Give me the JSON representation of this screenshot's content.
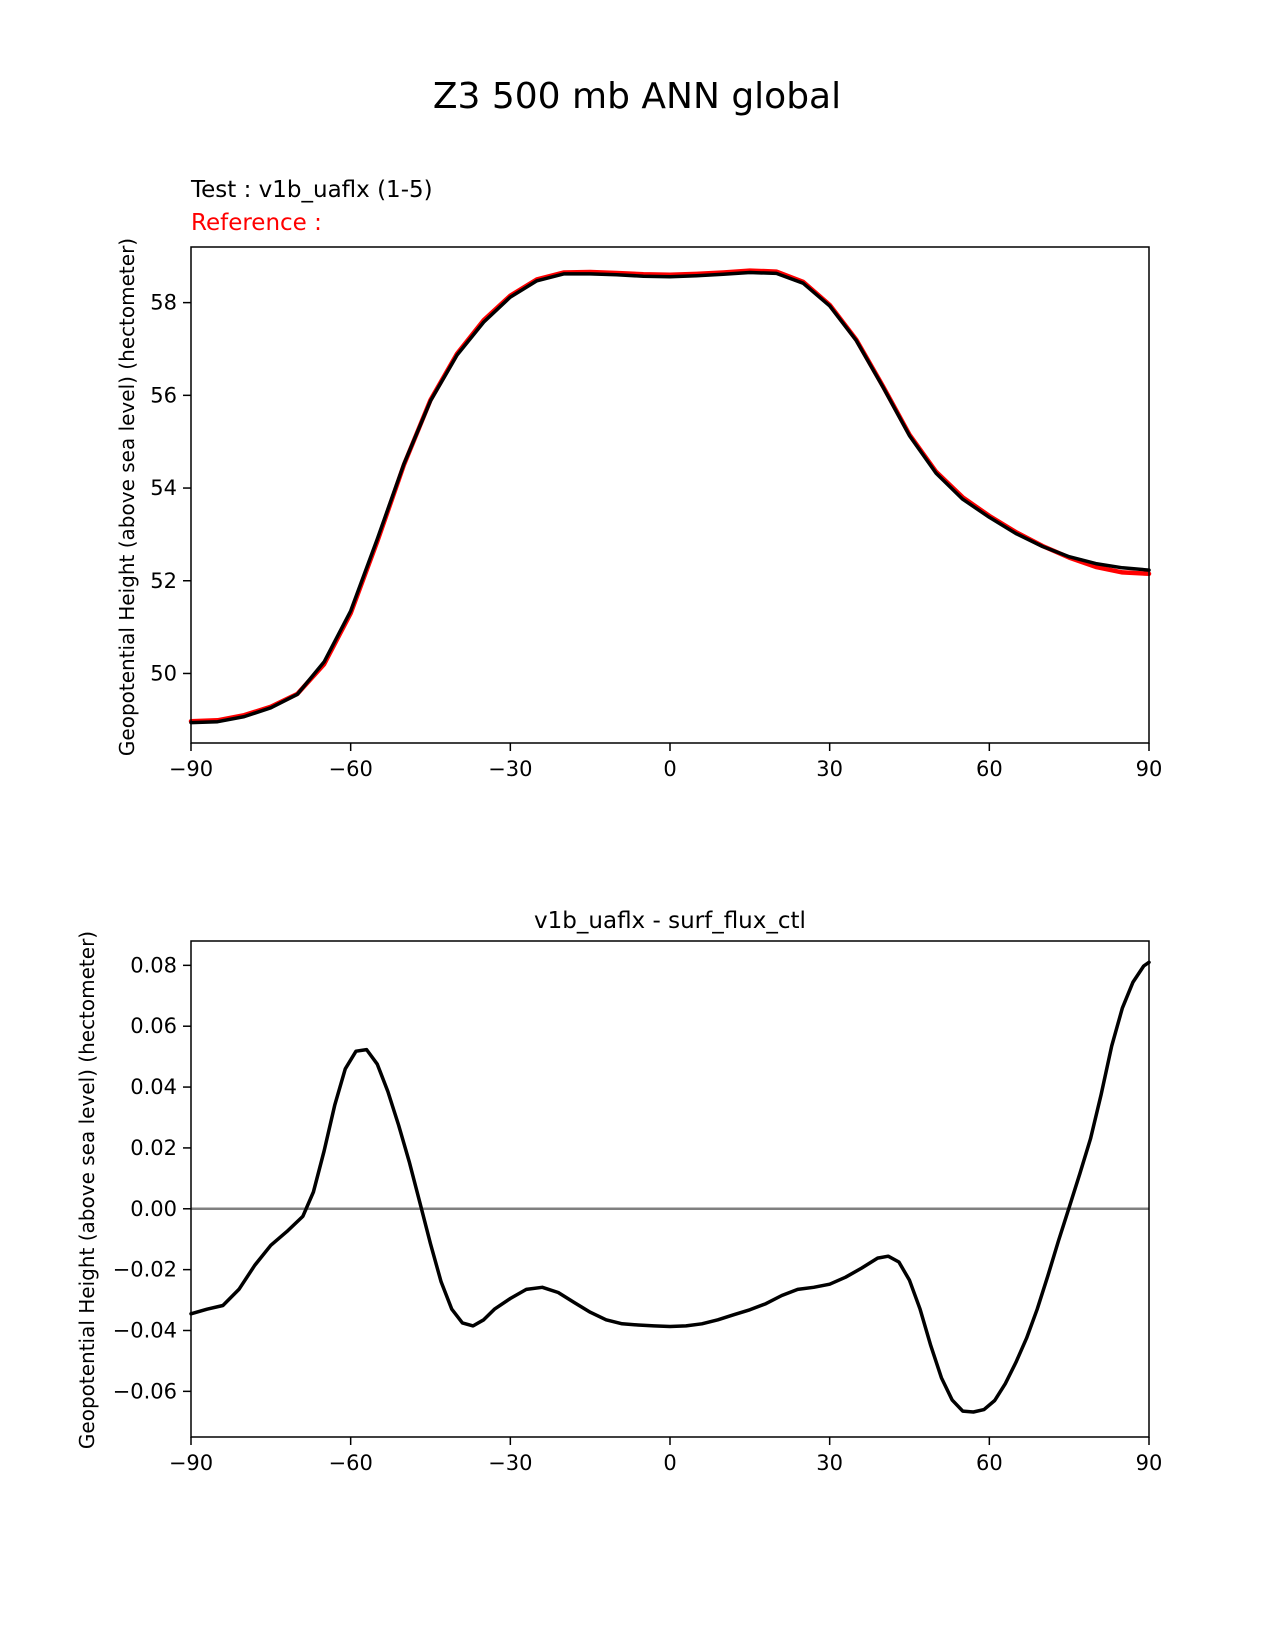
{
  "figure": {
    "title": "Z3 500 mb ANN global"
  },
  "chart_data": [
    {
      "type": "line",
      "title": "",
      "test_label": "Test : v1b_uaflx (1-5)",
      "reference_label": "Reference :",
      "xlabel": "",
      "ylabel": "Geopotential Height (above sea level) (hectometer)",
      "xlim": [
        -90,
        90
      ],
      "ylim": [
        48.5,
        59.2
      ],
      "xticks": [
        -90,
        -60,
        -30,
        0,
        30,
        60,
        90
      ],
      "xtick_labels": [
        "−90",
        "−60",
        "−30",
        "0",
        "30",
        "60",
        "90"
      ],
      "yticks": [
        50,
        52,
        54,
        56,
        58
      ],
      "ytick_labels": [
        "50",
        "52",
        "54",
        "56",
        "58"
      ],
      "colors": {
        "test": "#000000",
        "reference": "#ff0000"
      },
      "x": [
        -90,
        -85,
        -80,
        -75,
        -70,
        -65,
        -60,
        -55,
        -50,
        -45,
        -40,
        -35,
        -30,
        -25,
        -20,
        -15,
        -10,
        -5,
        0,
        5,
        10,
        15,
        20,
        25,
        30,
        35,
        40,
        45,
        50,
        55,
        60,
        65,
        70,
        75,
        80,
        85,
        90
      ],
      "series": [
        {
          "name": "reference",
          "values": [
            48.97,
            48.99,
            49.1,
            49.28,
            49.56,
            50.2,
            51.3,
            52.85,
            54.5,
            55.9,
            56.9,
            57.62,
            58.15,
            58.5,
            58.65,
            58.66,
            58.64,
            58.61,
            58.6,
            58.62,
            58.65,
            58.69,
            58.67,
            58.45,
            57.95,
            57.2,
            56.2,
            55.15,
            54.35,
            53.8,
            53.4,
            53.05,
            52.75,
            52.5,
            52.3,
            52.18,
            52.15
          ]
        },
        {
          "name": "test",
          "values": [
            48.94,
            48.96,
            49.07,
            49.26,
            49.55,
            50.25,
            51.35,
            52.9,
            54.52,
            55.88,
            56.87,
            57.58,
            58.12,
            58.47,
            58.62,
            58.62,
            58.6,
            58.57,
            58.56,
            58.58,
            58.61,
            58.65,
            58.63,
            58.42,
            57.93,
            57.18,
            56.18,
            55.13,
            54.32,
            53.76,
            53.37,
            53.02,
            52.74,
            52.52,
            52.37,
            52.28,
            52.23
          ]
        }
      ]
    },
    {
      "type": "line",
      "title": "v1b_uaflx - surf_flux_ctl",
      "xlabel": "",
      "ylabel": "Geopotential Height (above sea level) (hectometer)",
      "xlim": [
        -90,
        90
      ],
      "ylim": [
        -0.075,
        0.088
      ],
      "xticks": [
        -90,
        -60,
        -30,
        0,
        30,
        60,
        90
      ],
      "xtick_labels": [
        "−90",
        "−60",
        "−30",
        "0",
        "30",
        "60",
        "90"
      ],
      "yticks": [
        -0.06,
        -0.04,
        -0.02,
        0.0,
        0.02,
        0.04,
        0.06,
        0.08
      ],
      "ytick_labels": [
        "−0.06",
        "−0.04",
        "−0.02",
        "0.00",
        "0.02",
        "0.04",
        "0.06",
        "0.08"
      ],
      "zero_line_color": "#808080",
      "colors": {
        "difference": "#000000"
      },
      "x": [
        -90,
        -87,
        -84,
        -81,
        -78,
        -75,
        -72,
        -69,
        -67,
        -65,
        -63,
        -61,
        -59,
        -57,
        -55,
        -53,
        -51,
        -49,
        -47,
        -45,
        -43,
        -41,
        -39,
        -37,
        -35,
        -33,
        -30,
        -27,
        -24,
        -21,
        -18,
        -15,
        -12,
        -9,
        -6,
        -3,
        0,
        3,
        6,
        9,
        12,
        15,
        18,
        21,
        24,
        27,
        30,
        33,
        36,
        39,
        41,
        43,
        45,
        47,
        49,
        51,
        53,
        55,
        57,
        59,
        61,
        63,
        65,
        67,
        69,
        71,
        73,
        75,
        77,
        79,
        81,
        83,
        85,
        87,
        89,
        90
      ],
      "series": [
        {
          "name": "difference",
          "values": [
            -0.0345,
            -0.033,
            -0.0318,
            -0.0265,
            -0.0185,
            -0.012,
            -0.0075,
            -0.0025,
            0.0055,
            0.019,
            0.034,
            0.046,
            0.0518,
            0.0523,
            0.0475,
            0.0385,
            0.0275,
            0.0155,
            0.002,
            -0.0115,
            -0.024,
            -0.033,
            -0.0375,
            -0.0385,
            -0.0365,
            -0.033,
            -0.0295,
            -0.0265,
            -0.0258,
            -0.0275,
            -0.0308,
            -0.034,
            -0.0365,
            -0.0378,
            -0.0382,
            -0.0385,
            -0.0387,
            -0.0385,
            -0.0378,
            -0.0365,
            -0.0348,
            -0.0332,
            -0.0312,
            -0.0285,
            -0.0265,
            -0.0258,
            -0.0248,
            -0.0225,
            -0.0195,
            -0.0162,
            -0.0156,
            -0.0175,
            -0.0235,
            -0.033,
            -0.045,
            -0.0555,
            -0.0628,
            -0.0665,
            -0.0668,
            -0.066,
            -0.063,
            -0.0575,
            -0.0505,
            -0.0425,
            -0.033,
            -0.022,
            -0.0105,
            0.0005,
            0.0115,
            0.023,
            0.0375,
            0.0535,
            0.066,
            0.0745,
            0.0798,
            0.081
          ]
        }
      ]
    }
  ]
}
